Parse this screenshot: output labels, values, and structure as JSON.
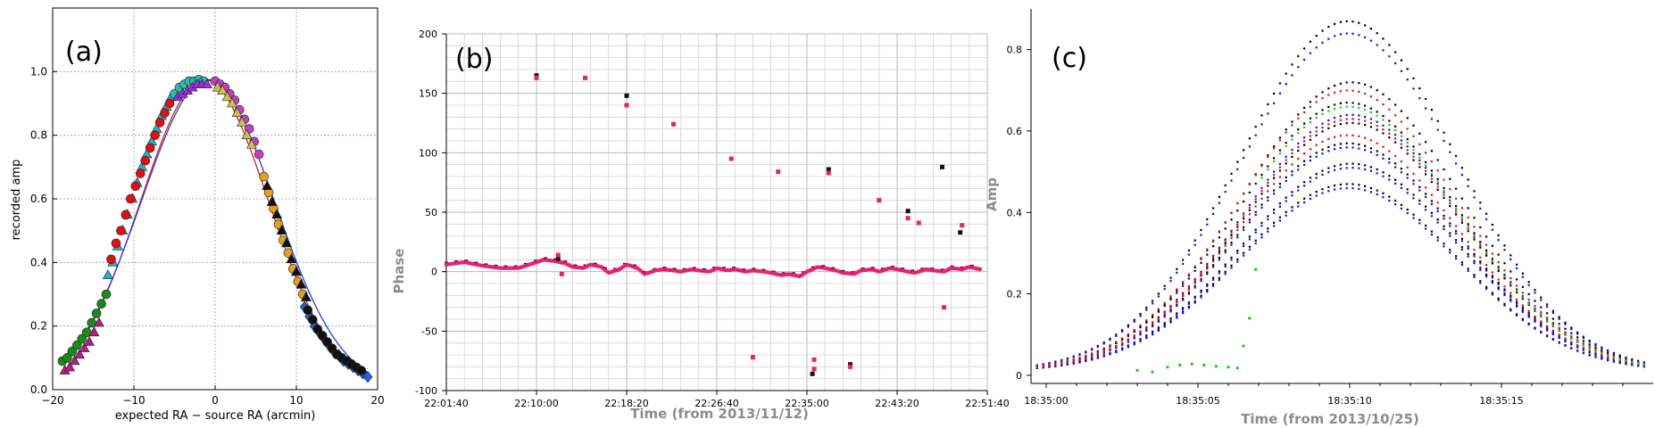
{
  "chart_data": [
    {
      "id": "a",
      "type": "scatter",
      "panel_label": "(a)",
      "xlabel": "expected RA − source RA (arcmin)",
      "ylabel": "recorded amp",
      "xlim": [
        -20,
        20
      ],
      "ylim": [
        0,
        1.2
      ],
      "xticks": [
        -20,
        -10,
        0,
        10,
        20
      ],
      "yticks": [
        0.0,
        0.2,
        0.4,
        0.6,
        0.8,
        1.0
      ],
      "ytick_labels": [
        "0.0",
        "0.2",
        "0.4",
        "0.6",
        "0.8",
        "1.0"
      ],
      "grid": true,
      "fit_lines": [
        {
          "color": "#dd2020",
          "center": -1.3,
          "amp": 0.975,
          "width": 7.9
        },
        {
          "color": "#2040e0",
          "center": -0.9,
          "amp": 0.975,
          "width": 8.2
        }
      ],
      "series": [
        {
          "marker": "circle",
          "color": "#1a8a1a",
          "x": [
            -18.8,
            -18.2,
            -17.6,
            -17.0,
            -16.4,
            -15.8,
            -15.2,
            -14.6,
            -14.0,
            -13.4
          ],
          "y": [
            0.09,
            0.1,
            0.12,
            0.14,
            0.16,
            0.18,
            0.21,
            0.24,
            0.27,
            0.3
          ]
        },
        {
          "marker": "triangle",
          "color": "#b02080",
          "x": [
            -18.5,
            -17.9,
            -17.3,
            -16.7,
            -16.1,
            -15.5,
            -14.9,
            -14.3
          ],
          "y": [
            0.06,
            0.07,
            0.09,
            0.11,
            0.13,
            0.15,
            0.18,
            0.21
          ]
        },
        {
          "marker": "triangle",
          "color": "#20b0d0",
          "x": [
            -13.2,
            -12.6,
            -12.0,
            -11.4,
            -10.8,
            -10.2,
            -9.6,
            -9.0,
            -8.4,
            -7.8,
            -7.2,
            -6.6,
            -6.0,
            -5.4
          ],
          "y": [
            0.36,
            0.4,
            0.45,
            0.5,
            0.55,
            0.6,
            0.65,
            0.7,
            0.74,
            0.78,
            0.82,
            0.86,
            0.89,
            0.92
          ]
        },
        {
          "marker": "circle",
          "color": "#e01010",
          "x": [
            -12.8,
            -12.2,
            -11.6,
            -11.0,
            -10.4,
            -9.8,
            -9.2,
            -8.6,
            -8.0,
            -7.4,
            -6.8,
            -6.2,
            -5.6
          ],
          "y": [
            0.41,
            0.46,
            0.5,
            0.55,
            0.6,
            0.64,
            0.68,
            0.72,
            0.76,
            0.8,
            0.84,
            0.87,
            0.9
          ]
        },
        {
          "marker": "circle",
          "color": "#30b8b0",
          "x": [
            -5.0,
            -4.4,
            -3.8,
            -3.2,
            -2.6,
            -2.0,
            -1.4
          ],
          "y": [
            0.93,
            0.95,
            0.96,
            0.97,
            0.97,
            0.975,
            0.97
          ]
        },
        {
          "marker": "triangle",
          "color": "#9a30d0",
          "x": [
            -4.6,
            -4.0,
            -3.4,
            -2.8,
            -2.2,
            -1.6,
            -1.0
          ],
          "y": [
            0.92,
            0.93,
            0.94,
            0.95,
            0.96,
            0.96,
            0.96
          ]
        },
        {
          "marker": "circle",
          "color": "#c040c0",
          "x": [
            0.0,
            0.6,
            1.2,
            1.8,
            2.4,
            3.0,
            3.6,
            4.2,
            4.8,
            5.4
          ],
          "y": [
            0.97,
            0.96,
            0.95,
            0.93,
            0.91,
            0.88,
            0.85,
            0.82,
            0.78,
            0.74
          ]
        },
        {
          "marker": "triangle",
          "color": "#c8c050",
          "x": [
            0.3,
            0.9,
            1.5,
            2.1,
            2.7,
            3.3,
            3.9,
            4.5
          ],
          "y": [
            0.95,
            0.94,
            0.92,
            0.9,
            0.87,
            0.84,
            0.8,
            0.77
          ]
        },
        {
          "marker": "circle",
          "color": "#e0a020",
          "x": [
            6.0,
            6.6,
            7.2,
            7.8,
            8.4,
            9.0,
            9.6,
            10.2,
            10.8
          ],
          "y": [
            0.67,
            0.62,
            0.57,
            0.52,
            0.47,
            0.43,
            0.38,
            0.34,
            0.3
          ]
        },
        {
          "marker": "triangle",
          "color": "#111111",
          "x": [
            6.4,
            7.0,
            7.6,
            8.2,
            8.8,
            9.4,
            10.0,
            10.6,
            11.2
          ],
          "y": [
            0.64,
            0.59,
            0.55,
            0.5,
            0.46,
            0.41,
            0.37,
            0.33,
            0.29
          ]
        },
        {
          "marker": "diamond",
          "color": "#2060e0",
          "x": [
            11.0,
            11.6,
            12.2,
            12.8,
            13.4,
            14.0,
            14.6,
            15.2,
            15.8,
            16.4,
            17.0,
            17.6,
            18.2,
            18.8
          ],
          "y": [
            0.26,
            0.23,
            0.2,
            0.18,
            0.16,
            0.14,
            0.12,
            0.11,
            0.09,
            0.08,
            0.07,
            0.06,
            0.05,
            0.04
          ]
        },
        {
          "marker": "circle",
          "color": "#111111",
          "x": [
            11.4,
            12.0,
            12.6,
            13.2,
            13.8,
            14.4,
            15.0,
            15.6,
            16.2,
            16.8,
            17.4,
            18.0
          ],
          "y": [
            0.25,
            0.22,
            0.19,
            0.17,
            0.15,
            0.13,
            0.11,
            0.1,
            0.09,
            0.08,
            0.07,
            0.06
          ]
        }
      ]
    },
    {
      "id": "b",
      "type": "scatter",
      "panel_label": "(b)",
      "xlabel": "Time (from 2013/11/12)",
      "ylabel": "Phase",
      "x_tick_labels": [
        "22:01:40",
        "22:10:00",
        "22:18:20",
        "22:26:40",
        "22:35:00",
        "22:43:20",
        "22:51:40"
      ],
      "xlim_seconds": [
        0,
        3000
      ],
      "ylim": [
        -100,
        200
      ],
      "yticks": [
        -100,
        -50,
        0,
        50,
        100,
        150,
        200
      ],
      "grid": true,
      "colors": [
        "#e8206e",
        "#111111"
      ],
      "trace": {
        "description_free": true,
        "t": [
          0,
          100,
          200,
          300,
          400,
          500,
          540,
          600,
          660,
          700,
          760,
          800,
          860,
          900,
          960,
          1000,
          1060,
          1100,
          1160,
          1200,
          1260,
          1300,
          1360,
          1400,
          1460,
          1500,
          1560,
          1600,
          1660,
          1700,
          1760,
          1800,
          1860,
          1900,
          1960,
          2000,
          2060,
          2100,
          2160,
          2200,
          2260,
          2300,
          2360,
          2400,
          2460,
          2500,
          2560,
          2600,
          2660,
          2700,
          2760,
          2800,
          2860,
          2900,
          2960
        ],
        "phase": [
          6,
          8,
          5,
          3,
          3,
          8,
          10,
          9,
          7,
          4,
          3,
          6,
          4,
          -1,
          2,
          6,
          3,
          -2,
          1,
          2,
          1,
          0,
          2,
          1,
          0,
          3,
          1,
          2,
          0,
          1,
          0,
          -1,
          -3,
          -2,
          -4,
          0,
          4,
          3,
          1,
          -1,
          -2,
          1,
          2,
          0,
          3,
          2,
          0,
          -1,
          2,
          1,
          0,
          3,
          2,
          4,
          2
        ]
      },
      "outliers_pink": [
        [
          500,
          163
        ],
        [
          770,
          163
        ],
        [
          1000,
          140
        ],
        [
          1260,
          124
        ],
        [
          1580,
          95
        ],
        [
          1700,
          -72
        ],
        [
          1840,
          84
        ],
        [
          2040,
          -74
        ],
        [
          2040,
          -82
        ],
        [
          2120,
          83
        ],
        [
          2240,
          -80
        ],
        [
          2400,
          60
        ],
        [
          2560,
          45
        ],
        [
          2620,
          41
        ],
        [
          2760,
          -30
        ],
        [
          2860,
          39
        ],
        [
          620,
          14
        ],
        [
          640,
          -2
        ]
      ],
      "outliers_black": [
        [
          500,
          165
        ],
        [
          1000,
          148
        ],
        [
          2030,
          -86
        ],
        [
          2120,
          86
        ],
        [
          2240,
          -78
        ],
        [
          2560,
          51
        ],
        [
          2750,
          88
        ],
        [
          2850,
          33
        ],
        [
          620,
          11
        ]
      ]
    },
    {
      "id": "c",
      "type": "scatter",
      "panel_label": "(c)",
      "xlabel": "Time (from 2013/10/25)",
      "ylabel": "Amp",
      "x_tick_labels": [
        "18:35:00",
        "18:35:05",
        "18:35:10",
        "18:35:15"
      ],
      "xlim_seconds": [
        -0.5,
        20
      ],
      "ylim": [
        -0.02,
        0.9
      ],
      "yticks": [
        0.0,
        0.2,
        0.4,
        0.6,
        0.8
      ],
      "ytick_labels": [
        "0",
        "0.2",
        "0.4",
        "0.6",
        "0.8"
      ],
      "grid": false,
      "center_seconds": 10.0,
      "width_seconds": 3.6,
      "baseline": 0.01,
      "band_amplitudes": {
        "black": [
          0.87,
          0.72,
          0.67,
          0.62,
          0.57,
          0.52,
          0.47
        ],
        "blue": [
          0.84,
          0.64,
          0.56,
          0.51,
          0.46
        ],
        "red": [
          0.7,
          0.63,
          0.59
        ],
        "green": [
          0.66
        ]
      },
      "green_glitch": [
        [
          3.0,
          0.012
        ],
        [
          3.5,
          0.008
        ],
        [
          4.0,
          0.02
        ],
        [
          4.4,
          0.025
        ],
        [
          4.8,
          0.028
        ],
        [
          5.2,
          0.025
        ],
        [
          5.6,
          0.022
        ],
        [
          6.0,
          0.02
        ],
        [
          6.3,
          0.018
        ],
        [
          6.5,
          0.072
        ],
        [
          6.7,
          0.14
        ],
        [
          6.9,
          0.26
        ]
      ]
    }
  ]
}
